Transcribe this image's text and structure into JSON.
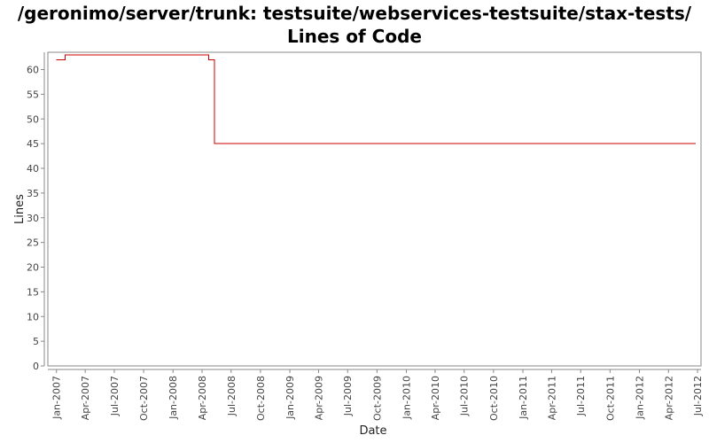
{
  "chart_data": {
    "type": "line",
    "title": "/geronimo/server/trunk: testsuite/webservices-testsuite/stax-tests/ Lines of Code",
    "xlabel": "Date",
    "ylabel": "Lines",
    "x_tick_labels": [
      "Jan-2007",
      "Apr-2007",
      "Jul-2007",
      "Oct-2007",
      "Jan-2008",
      "Apr-2008",
      "Jul-2008",
      "Oct-2008",
      "Jan-2009",
      "Apr-2009",
      "Jul-2009",
      "Oct-2009",
      "Jan-2010",
      "Apr-2010",
      "Jul-2010",
      "Oct-2010",
      "Jan-2011",
      "Apr-2011",
      "Jul-2011",
      "Oct-2011",
      "Jan-2012",
      "Apr-2012",
      "Jul-2012"
    ],
    "y_ticks": [
      0,
      5,
      10,
      15,
      20,
      25,
      30,
      35,
      40,
      45,
      50,
      55,
      60
    ],
    "ylim": [
      0,
      63.5
    ],
    "xlim": [
      "2006-12-05",
      "2012-07-12"
    ],
    "series": [
      {
        "color": "#cc0000",
        "step": true,
        "points": [
          {
            "x": "2007-01-01",
            "y": 62
          },
          {
            "x": "2007-01-28",
            "y": 63
          },
          {
            "x": "2008-04-22",
            "y": 62
          },
          {
            "x": "2008-05-10",
            "y": 45
          },
          {
            "x": "2012-06-25",
            "y": 45
          }
        ]
      }
    ],
    "grid": false,
    "legend": "none"
  }
}
